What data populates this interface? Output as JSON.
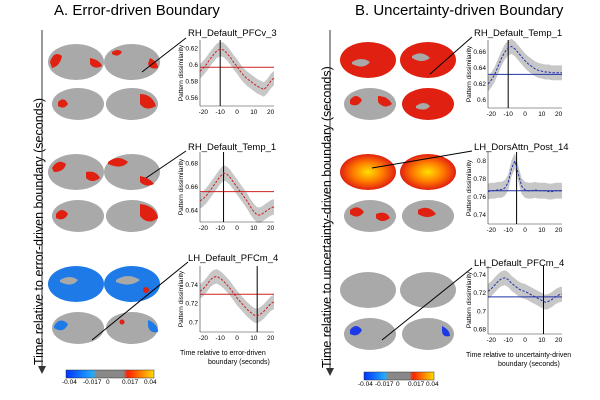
{
  "panel_a": {
    "title": "A. Error-driven Boundary",
    "side_label": "Time relative to error-driven boundary (seconds)",
    "x_axis_label_line1": "Time relative to error-driven",
    "x_axis_label_line2": "boundary (seconds)",
    "colorbar_ticks": [
      "-0.04",
      "-0.017",
      "0",
      "0.017",
      "0.04"
    ],
    "plots": [
      {
        "region": "RH_Default_PFCv_3",
        "ylabel": "Pattern dissimilarity",
        "yticks": [
          "0.56",
          "0.58",
          "0.6",
          "0.62"
        ]
      },
      {
        "region": "RH_Default_Temp_1",
        "ylabel": "Pattern dissimilarity",
        "yticks": [
          "0.64",
          "0.66",
          "0.68"
        ]
      },
      {
        "region": "LH_Default_PFCm_4",
        "ylabel": "Pattern dissimilarity",
        "yticks": [
          "0.7",
          "0.72",
          "0.74"
        ]
      }
    ]
  },
  "panel_b": {
    "title": "B. Uncertainty-driven Boundary",
    "side_label": "Time relative to  uncertainty-driven boundary (seconds)",
    "x_axis_label_line1": "Time relative to uncertainty-driven",
    "x_axis_label_line2": "boundary (seconds)",
    "colorbar_ticks": [
      "-0.04",
      "-0.017",
      "0",
      "0.017",
      "0.04"
    ],
    "plots": [
      {
        "region": "RH_Default_Temp_1",
        "ylabel": "Pattern dissimilarity",
        "yticks": [
          "0.6",
          "0.62",
          "0.64",
          "0.66"
        ]
      },
      {
        "region": "LH_DorsAttn_Post_14",
        "ylabel": "Pattern dissimilarity",
        "yticks": [
          "0.74",
          "0.76",
          "0.78",
          "0.8"
        ]
      },
      {
        "region": "LH_Default_PFCm_4",
        "ylabel": "Pattern dissimilarity",
        "yticks": [
          "0.68",
          "0.7",
          "0.72",
          "0.74"
        ]
      }
    ]
  },
  "xticks": [
    "-20",
    "-10",
    "0",
    "10",
    "20"
  ],
  "colors": {
    "error_line": "#cc2222",
    "uncertainty_line": "#2233aa",
    "ribbon": "#bdbdbd",
    "brain_base": "#a9a9a9",
    "positive": "#e02010",
    "negative": "#1e7ae6"
  },
  "chart_data": [
    {
      "type": "line",
      "title": "RH_Default_PFCv_3",
      "ylabel": "Pattern dissimilarity",
      "x": [
        -22,
        -20,
        -18,
        -16,
        -14,
        -12,
        -10,
        -8,
        -6,
        -4,
        -2,
        0,
        2,
        4,
        6,
        8,
        10,
        12,
        14,
        16,
        18,
        20,
        22
      ],
      "series": [
        {
          "values": [
            0.592,
            0.596,
            0.601,
            0.607,
            0.612,
            0.617,
            0.619,
            0.618,
            0.614,
            0.609,
            0.603,
            0.598,
            0.592,
            0.587,
            0.583,
            0.58,
            0.577,
            0.574,
            0.572,
            0.57,
            0.574,
            0.58,
            0.584
          ]
        }
      ],
      "hline": 0.597,
      "vline": -10,
      "ylim": [
        0.55,
        0.63
      ],
      "xlim": [
        -22,
        22
      ]
    },
    {
      "type": "line",
      "title": "RH_Default_Temp_1",
      "ylabel": "Pattern dissimilarity",
      "x": [
        -22,
        -20,
        -18,
        -16,
        -14,
        -12,
        -10,
        -8,
        -6,
        -4,
        -2,
        0,
        2,
        4,
        6,
        8,
        10,
        12,
        14,
        16,
        18,
        20,
        22
      ],
      "series": [
        {
          "values": [
            0.648,
            0.65,
            0.653,
            0.657,
            0.661,
            0.665,
            0.669,
            0.672,
            0.671,
            0.668,
            0.664,
            0.66,
            0.656,
            0.652,
            0.648,
            0.643,
            0.639,
            0.636,
            0.636,
            0.638,
            0.64,
            0.642,
            0.643
          ]
        }
      ],
      "hline": 0.656,
      "vline": -8,
      "ylim": [
        0.63,
        0.69
      ],
      "xlim": [
        -22,
        22
      ]
    },
    {
      "type": "line",
      "title": "LH_Default_PFCm_4",
      "ylabel": "Pattern dissimilarity",
      "x": [
        -22,
        -20,
        -18,
        -16,
        -14,
        -12,
        -10,
        -8,
        -6,
        -4,
        -2,
        0,
        2,
        4,
        6,
        8,
        10,
        12,
        14,
        16,
        18,
        20,
        22
      ],
      "series": [
        {
          "values": [
            0.733,
            0.736,
            0.74,
            0.745,
            0.748,
            0.749,
            0.747,
            0.744,
            0.74,
            0.736,
            0.731,
            0.726,
            0.722,
            0.718,
            0.714,
            0.711,
            0.708,
            0.707,
            0.709,
            0.712,
            0.716,
            0.72,
            0.722
          ]
        }
      ],
      "hline": 0.73,
      "vline": 12,
      "ylim": [
        0.69,
        0.76
      ],
      "xlim": [
        -22,
        22
      ]
    },
    {
      "type": "line",
      "title": "RH_Default_Temp_1",
      "ylabel": "Pattern dissimilarity",
      "x": [
        -22,
        -20,
        -18,
        -16,
        -14,
        -12,
        -10,
        -8,
        -6,
        -4,
        -2,
        0,
        2,
        4,
        6,
        8,
        10,
        12,
        14,
        16,
        18,
        20,
        22
      ],
      "series": [
        {
          "values": [
            0.62,
            0.625,
            0.632,
            0.642,
            0.652,
            0.66,
            0.665,
            0.667,
            0.664,
            0.659,
            0.654,
            0.649,
            0.645,
            0.642,
            0.639,
            0.637,
            0.636,
            0.635,
            0.635,
            0.634,
            0.634,
            0.634,
            0.634
          ]
        }
      ],
      "hline": 0.632,
      "vline": -10,
      "ylim": [
        0.59,
        0.675
      ],
      "xlim": [
        -22,
        22
      ]
    },
    {
      "type": "line",
      "title": "LH_DorsAttn_Post_14",
      "ylabel": "Pattern dissimilarity",
      "x": [
        -22,
        -20,
        -18,
        -16,
        -14,
        -12,
        -10,
        -8,
        -6,
        -4,
        -2,
        0,
        2,
        4,
        6,
        8,
        10,
        12,
        14,
        16,
        18,
        20,
        22
      ],
      "series": [
        {
          "values": [
            0.766,
            0.767,
            0.767,
            0.768,
            0.768,
            0.77,
            0.776,
            0.792,
            0.8,
            0.786,
            0.772,
            0.768,
            0.767,
            0.767,
            0.768,
            0.767,
            0.767,
            0.767,
            0.766,
            0.766,
            0.767,
            0.767,
            0.767
          ]
        }
      ],
      "hline": 0.767,
      "vline": -5,
      "ylim": [
        0.73,
        0.81
      ],
      "xlim": [
        -22,
        22
      ]
    },
    {
      "type": "line",
      "title": "LH_Default_PFCm_4",
      "ylabel": "Pattern dissimilarity",
      "x": [
        -22,
        -20,
        -18,
        -16,
        -14,
        -12,
        -10,
        -8,
        -6,
        -4,
        -2,
        0,
        2,
        4,
        6,
        8,
        10,
        12,
        14,
        16,
        18,
        20,
        22
      ],
      "series": [
        {
          "values": [
            0.722,
            0.725,
            0.729,
            0.733,
            0.736,
            0.737,
            0.735,
            0.731,
            0.728,
            0.725,
            0.723,
            0.722,
            0.72,
            0.718,
            0.716,
            0.714,
            0.712,
            0.71,
            0.711,
            0.713,
            0.716,
            0.718,
            0.719
          ]
        }
      ],
      "hline": 0.716,
      "vline": 11,
      "ylim": [
        0.675,
        0.75
      ],
      "xlim": [
        -22,
        22
      ]
    }
  ]
}
